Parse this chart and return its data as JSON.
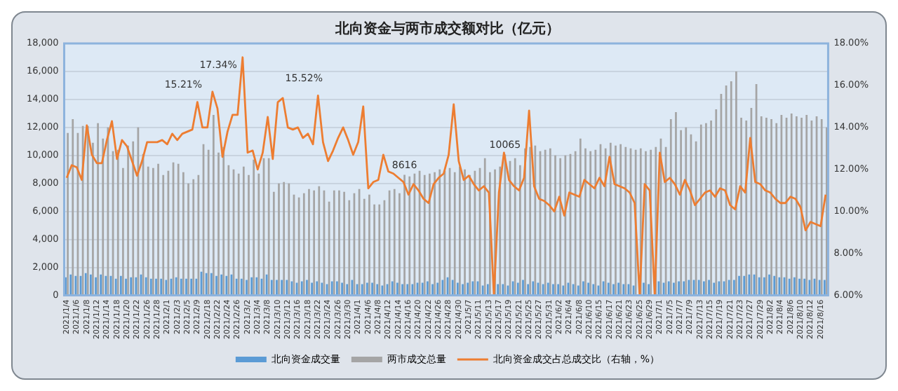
{
  "chart_data": {
    "type": "bar",
    "title": "北向资金与两市成交额对比（亿元）",
    "categories": [
      "2021/1/4",
      null,
      "2021/1/6",
      null,
      "2021/1/8",
      null,
      "2021/1/12",
      null,
      "2021/1/14",
      null,
      "2021/1/18",
      null,
      "2021/1/20",
      null,
      "2021/1/22",
      null,
      "2021/1/26",
      null,
      "2021/1/28",
      null,
      "2021/2/1",
      null,
      "2021/2/3",
      null,
      "2021/2/5",
      null,
      "2021/2/9",
      null,
      "2021/2/18",
      null,
      "2021/2/22",
      null,
      "2021/2/24",
      null,
      "2021/2/26",
      null,
      "2021/3/2",
      null,
      "2021/3/4",
      null,
      "2021/3/8",
      null,
      "2021/3/10",
      null,
      "2021/3/12",
      null,
      "2021/3/16",
      null,
      "2021/3/18",
      null,
      "2021/3/22",
      null,
      "2021/3/24",
      null,
      "2021/3/26",
      null,
      "2021/3/30",
      null,
      "2021/4/1",
      null,
      "2021/4/6",
      null,
      "2021/4/8",
      null,
      "2021/4/12",
      null,
      "2021/4/14",
      null,
      "2021/4/16",
      null,
      "2021/4/20",
      null,
      "2021/4/22",
      null,
      "2021/4/26",
      null,
      "2021/4/28",
      null,
      "2021/4/30",
      null,
      "2021/5/7",
      null,
      "2021/5/11",
      null,
      "2021/5/13",
      null,
      "2021/5/17",
      null,
      "2021/5/19",
      null,
      "2021/5/21",
      null,
      "2021/5/25",
      null,
      "2021/5/27",
      null,
      "2021/5/31",
      null,
      "2021/6/2",
      null,
      "2021/6/4",
      null,
      "2021/6/8",
      null,
      "2021/6/10",
      null,
      "2021/6/15",
      null,
      "2021/6/17",
      null,
      "2021/6/21",
      null,
      "2021/6/23",
      null,
      "2021/6/25",
      null,
      "2021/6/29",
      null,
      "2021/7/1",
      null,
      "2021/7/5",
      null,
      "2021/7/7",
      null,
      "2021/7/9",
      null,
      "2021/7/13",
      null,
      "2021/7/15",
      null,
      "2021/7/19",
      null,
      "2021/7/21",
      null,
      "2021/7/23",
      null,
      "2021/7/27",
      null,
      "2021/7/29",
      null,
      "2021/8/2",
      null,
      "2021/8/4",
      null,
      "2021/8/6",
      null,
      "2021/8/10",
      null,
      "2021/8/12",
      null,
      "2021/8/16",
      null
    ],
    "series": [
      {
        "name": "北向资金成交量",
        "color": "#5b9bd5",
        "values": [
          1300,
          1500,
          1400,
          1400,
          1600,
          1500,
          1300,
          1500,
          1400,
          1400,
          1200,
          1400,
          1200,
          1300,
          1300,
          1500,
          1300,
          1200,
          1200,
          1200,
          1100,
          1200,
          1300,
          1200,
          1200,
          1200,
          1200,
          1700,
          1600,
          1600,
          1400,
          1500,
          1400,
          1500,
          1200,
          1200,
          1100,
          1300,
          1300,
          1200,
          1500,
          1100,
          1100,
          1100,
          1100,
          1000,
          900,
          1000,
          1100,
          900,
          1000,
          900,
          800,
          1000,
          1000,
          900,
          800,
          1100,
          800,
          800,
          900,
          900,
          800,
          700,
          800,
          1000,
          900,
          800,
          800,
          800,
          900,
          900,
          1000,
          800,
          900,
          1100,
          1300,
          1100,
          900,
          800,
          900,
          1000,
          1000,
          700,
          800,
          0,
          800,
          800,
          700,
          1000,
          900,
          1100,
          800,
          1000,
          900,
          800,
          900,
          800,
          800,
          700,
          900,
          800,
          700,
          1000,
          900,
          800,
          700,
          1000,
          900,
          800,
          900,
          800,
          800,
          700,
          0,
          900,
          800,
          0,
          1000,
          900,
          1000,
          900,
          1000,
          1000,
          1100,
          1100,
          1100,
          1000,
          1100,
          900,
          1000,
          1000,
          1100,
          1100,
          1400,
          1400,
          1500,
          1500,
          1300,
          1300,
          1500,
          1400,
          1300,
          1300,
          1200,
          1300,
          1200,
          1200,
          1100,
          1200,
          1100,
          1100
        ]
      },
      {
        "name": "两市成交总量",
        "color": "#a5a5a5",
        "values": [
          11600,
          12600,
          11600,
          12100,
          12100,
          10900,
          12300,
          11200,
          12000,
          10300,
          10400,
          9100,
          10700,
          11000,
          12000,
          10100,
          9200,
          9100,
          9400,
          8600,
          8900,
          9500,
          9400,
          8800,
          8000,
          8300,
          8600,
          10800,
          10400,
          12900,
          10200,
          10600,
          9300,
          9000,
          8700,
          9200,
          8600,
          9700,
          8700,
          9800,
          9800,
          7400,
          8000,
          8100,
          8000,
          7200,
          7000,
          7300,
          7600,
          7500,
          7800,
          7500,
          6700,
          7500,
          7500,
          7400,
          6800,
          7300,
          7600,
          6900,
          7200,
          6500,
          6500,
          6800,
          7500,
          7600,
          7300,
          8616,
          8500,
          8700,
          8900,
          8600,
          8700,
          8800,
          9000,
          8900,
          9100,
          8800,
          9200,
          9000,
          8600,
          8900,
          9100,
          9800,
          8800,
          9000,
          9200,
          10065,
          9600,
          9800,
          9300,
          10500,
          10600,
          10700,
          10300,
          10400,
          10500,
          10000,
          9800,
          10000,
          10100,
          10300,
          11200,
          10500,
          10300,
          10400,
          10800,
          10500,
          10900,
          10700,
          10800,
          10600,
          10500,
          10400,
          10500,
          10300,
          10400,
          10600,
          11200,
          10600,
          12600,
          13100,
          11800,
          12000,
          11500,
          11000,
          12200,
          12300,
          12500,
          13300,
          14400,
          15000,
          15300,
          16000,
          12700,
          12500,
          13400,
          15100,
          12800,
          12700,
          12600,
          12300,
          12900,
          12700,
          13000,
          12800,
          12700,
          12900,
          12500,
          12800,
          12600,
          12000
        ],
        "value_labels": [
          null,
          null,
          null,
          null,
          null,
          null,
          null,
          null,
          null,
          null,
          null,
          null,
          null,
          null,
          null,
          null,
          null,
          null,
          null,
          null,
          null,
          null,
          null,
          null,
          null,
          null,
          null,
          null,
          null,
          null,
          null,
          null,
          null,
          null,
          null,
          null,
          null,
          null,
          null,
          null,
          null,
          null,
          null,
          null,
          null,
          null,
          null,
          null,
          null,
          null,
          null,
          null,
          null,
          null,
          null,
          null,
          null,
          null,
          null,
          null,
          null,
          null,
          null,
          null,
          null,
          null,
          null,
          "8616",
          null,
          null,
          null,
          null,
          null,
          null,
          null,
          null,
          null,
          null,
          null,
          null,
          null,
          null,
          null,
          null,
          null,
          null,
          null,
          "10065",
          null,
          null,
          null,
          null,
          null,
          null,
          null,
          null,
          null,
          null,
          null,
          null,
          null,
          null,
          null,
          null,
          null,
          null,
          null,
          null,
          null,
          null,
          null,
          null,
          null,
          null,
          null,
          null,
          null,
          null,
          null,
          null,
          null,
          null,
          null,
          null,
          null,
          null,
          null,
          null,
          null,
          null,
          null,
          null,
          null,
          null,
          null,
          null,
          null,
          null,
          null,
          null,
          null,
          null,
          null,
          null,
          null,
          null,
          null,
          null,
          null,
          null,
          null,
          null
        ]
      },
      {
        "name": "北向资金成交占总成交比（右轴，%）",
        "type": "line",
        "axis": "y2",
        "color": "#ed7d31",
        "values": [
          11.6,
          12.2,
          12.1,
          11.5,
          14.1,
          12.7,
          12.3,
          12.3,
          13.4,
          14.3,
          12.5,
          13.4,
          13.1,
          12.4,
          11.7,
          12.4,
          13.3,
          13.3,
          13.3,
          13.4,
          13.2,
          13.7,
          13.4,
          13.7,
          13.8,
          13.9,
          15.21,
          14.0,
          14.0,
          15.7,
          14.9,
          12.6,
          13.8,
          14.6,
          14.6,
          17.34,
          12.8,
          12.9,
          12.0,
          12.8,
          14.5,
          12.5,
          15.2,
          15.4,
          14.0,
          13.9,
          14.0,
          13.5,
          13.7,
          13.2,
          15.52,
          13.3,
          12.4,
          12.9,
          13.5,
          14.0,
          13.4,
          12.7,
          13.3,
          15.0,
          11.1,
          11.4,
          11.5,
          12.7,
          11.9,
          11.8,
          11.6,
          11.4,
          10.8,
          11.3,
          11.0,
          10.6,
          10.4,
          11.3,
          11.6,
          11.8,
          12.7,
          15.1,
          12.4,
          11.5,
          11.7,
          11.3,
          11.0,
          11.2,
          10.9,
          6,
          10.9,
          12.8,
          11.5,
          11.2,
          11.0,
          11.6,
          14.8,
          11.2,
          10.6,
          10.5,
          10.3,
          10.0,
          10.7,
          9.8,
          10.9,
          10.8,
          10.7,
          11.5,
          11.3,
          11.1,
          11.6,
          11.2,
          12.6,
          11.3,
          11.2,
          11.1,
          10.9,
          10.4,
          6,
          11.3,
          11.0,
          6,
          12.8,
          11.4,
          11.6,
          11.3,
          10.8,
          11.5,
          11.0,
          10.3,
          10.6,
          10.9,
          11.0,
          10.7,
          11.1,
          11.0,
          10.3,
          10.1,
          11.2,
          10.9,
          13.5,
          11.4,
          11.3,
          11.0,
          10.9,
          10.6,
          10.4,
          10.4,
          10.7,
          10.6,
          10.2,
          9.1,
          9.5,
          9.4,
          9.3,
          10.8
        ],
        "value_labels": [
          null,
          null,
          null,
          null,
          null,
          null,
          null,
          null,
          null,
          null,
          null,
          null,
          null,
          null,
          null,
          null,
          null,
          null,
          null,
          null,
          null,
          null,
          null,
          null,
          null,
          null,
          "15.21%",
          null,
          null,
          null,
          null,
          null,
          null,
          null,
          null,
          "17.34%",
          null,
          null,
          null,
          null,
          null,
          null,
          null,
          null,
          null,
          null,
          null,
          null,
          null,
          null,
          "15.52%",
          null,
          null,
          null,
          null,
          null,
          null,
          null,
          null,
          null,
          null,
          null,
          null,
          null,
          null,
          null,
          null,
          null,
          null,
          null,
          null,
          null,
          null,
          null,
          null,
          null,
          null,
          null,
          null,
          null,
          null,
          null,
          null,
          null,
          null,
          null,
          null,
          null,
          null,
          null,
          null,
          null,
          null,
          null,
          null,
          null,
          null,
          null,
          null,
          null,
          null,
          null,
          null,
          null,
          null,
          null,
          null,
          null,
          null,
          null,
          null,
          null,
          null,
          null,
          null,
          null,
          null,
          null,
          null,
          null,
          null,
          null,
          null,
          null,
          null,
          null,
          null,
          null,
          null,
          null,
          null,
          null,
          null,
          null,
          null,
          null,
          null,
          null,
          null,
          null,
          null,
          null,
          null,
          null,
          null,
          null,
          null,
          null,
          null,
          null,
          null,
          null
        ]
      }
    ],
    "ylim": [
      0,
      18000
    ],
    "yticks": [
      0,
      {
        "value": 2000,
        "label": "2,000"
      },
      {
        "value": 4000,
        "label": "4,000"
      },
      {
        "value": 6000,
        "label": "6,000"
      },
      {
        "value": 8000,
        "label": "8,000"
      },
      {
        "value": 10000,
        "label": "10,000"
      },
      {
        "value": 12000,
        "label": "12,000"
      },
      {
        "value": 14000,
        "label": "14,000"
      },
      {
        "value": 16000,
        "label": "16,000"
      },
      {
        "value": 18000,
        "label": "18,000"
      }
    ],
    "y2lim": [
      6,
      18
    ],
    "y2ticks": [
      {
        "value": 6,
        "label": "6.00%"
      },
      {
        "value": 8,
        "label": "8.00%"
      },
      {
        "value": 10,
        "label": "10.00%"
      },
      {
        "value": 12,
        "label": "12.00%"
      },
      {
        "value": 14,
        "label": "14.00%"
      },
      {
        "value": 16,
        "label": "16.00%"
      },
      {
        "value": 18,
        "label": "18.00%"
      }
    ],
    "grid": "y",
    "legend": "bottom",
    "marker": "none"
  }
}
